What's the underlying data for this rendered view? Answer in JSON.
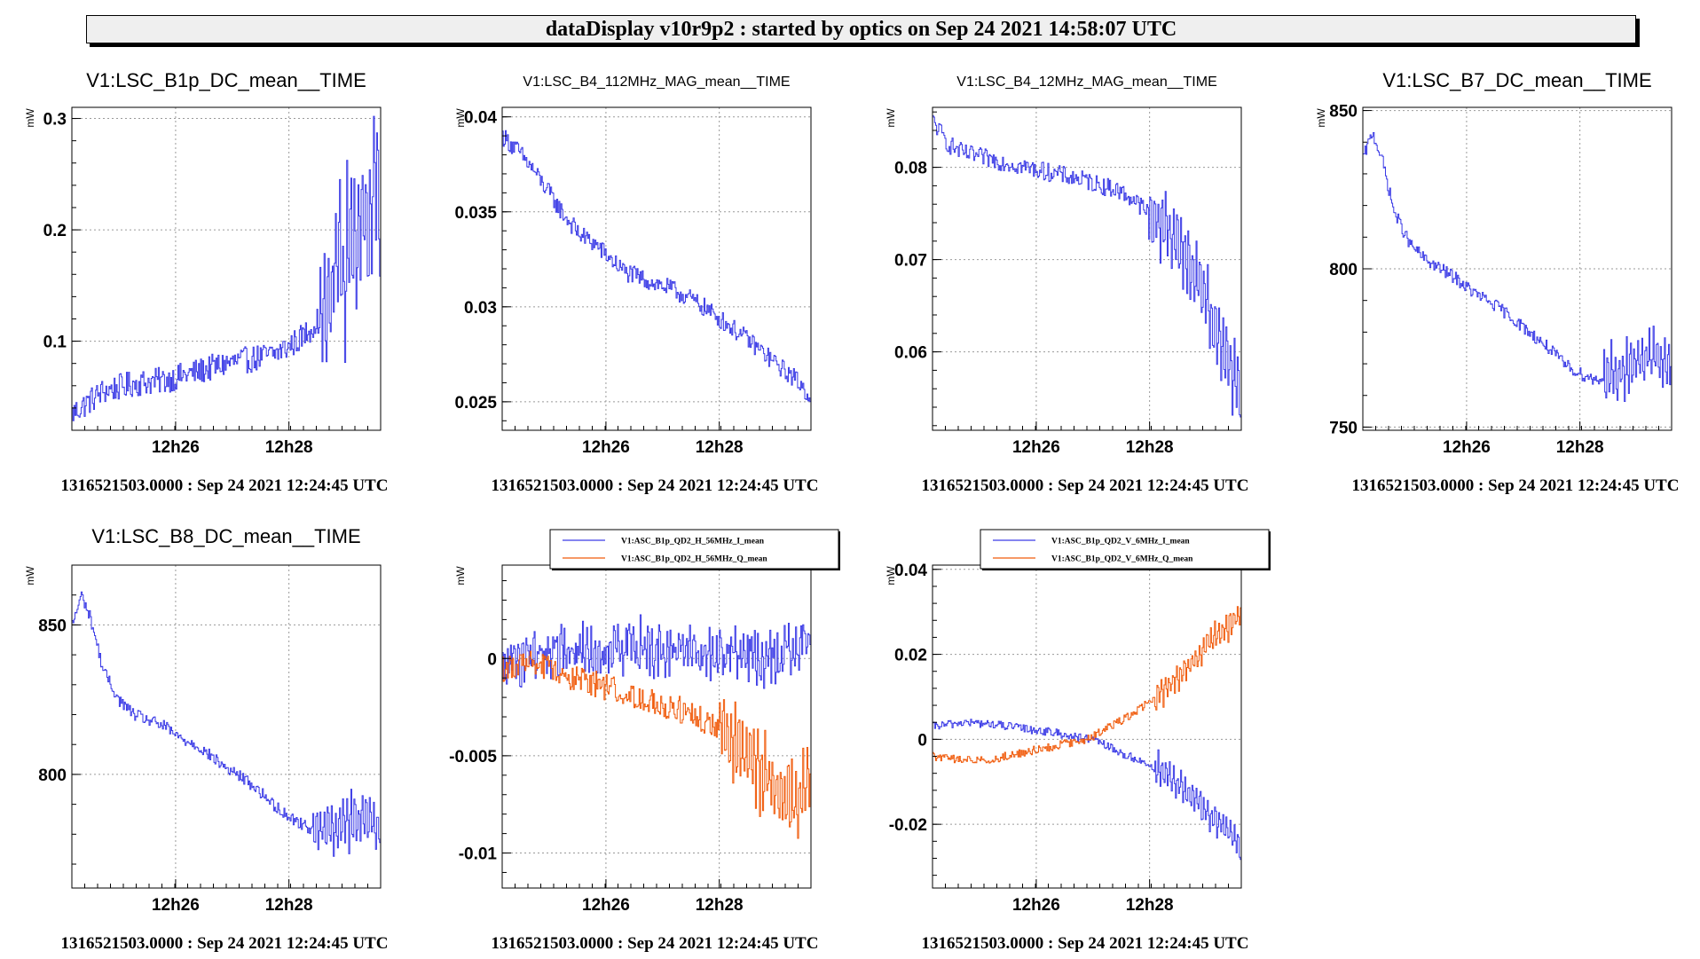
{
  "header": {
    "title": "dataDisplay v10r9p2 : started by optics on Sep 24 2021 14:58:07 UTC"
  },
  "colors": {
    "series_blue": "#3a3ae6",
    "series_orange": "#f05a0a",
    "grid": "#9a9a9a",
    "banner_bg": "#efefef"
  },
  "chart_data": [
    {
      "type": "line",
      "title": "V1:LSC_B1p_DC_mean__TIME",
      "ylabel": "mW",
      "yticks": [
        0.1,
        0.2,
        0.3
      ],
      "ytick_labels": [
        "0.1",
        "0.2",
        "0.3"
      ],
      "ylim": [
        0.02,
        0.31
      ],
      "xticks": [
        "12h26",
        "12h28"
      ],
      "xlabel": "1316521503.0000 : Sep 24 2021 12:24:45 UTC",
      "series": [
        {
          "color": "#3a3ae6",
          "anchors": [
            [
              0,
              0.035
            ],
            [
              0.05,
              0.045
            ],
            [
              0.1,
              0.055
            ],
            [
              0.2,
              0.062
            ],
            [
              0.3,
              0.065
            ],
            [
              0.4,
              0.072
            ],
            [
              0.5,
              0.08
            ],
            [
              0.6,
              0.085
            ],
            [
              0.65,
              0.088
            ],
            [
              0.7,
              0.095
            ],
            [
              0.75,
              0.105
            ],
            [
              0.8,
              0.12
            ],
            [
              0.84,
              0.14
            ],
            [
              0.86,
              0.18
            ],
            [
              0.88,
              0.15
            ],
            [
              0.9,
              0.2
            ],
            [
              0.92,
              0.18
            ],
            [
              0.94,
              0.23
            ],
            [
              0.96,
              0.2
            ],
            [
              0.98,
              0.26
            ],
            [
              1.0,
              0.2
            ]
          ],
          "noise": 0.012,
          "spike_from": 0.8,
          "spike_amp": 0.06
        }
      ]
    },
    {
      "type": "line",
      "title": "V1:LSC_B4_112MHz_MAG_mean__TIME",
      "ylabel": "mW",
      "yticks": [
        0.025,
        0.03,
        0.035,
        0.04
      ],
      "ytick_labels": [
        "0.025",
        "0.03",
        "0.035",
        "0.04"
      ],
      "ylim": [
        0.0235,
        0.0405
      ],
      "xticks": [
        "12h26",
        "12h28"
      ],
      "xlabel": "1316521503.0000 : Sep 24 2021 12:24:45 UTC",
      "series": [
        {
          "color": "#3a3ae6",
          "anchors": [
            [
              0,
              0.039
            ],
            [
              0.05,
              0.0382
            ],
            [
              0.1,
              0.0372
            ],
            [
              0.15,
              0.036
            ],
            [
              0.2,
              0.0348
            ],
            [
              0.25,
              0.0338
            ],
            [
              0.3,
              0.0333
            ],
            [
              0.35,
              0.0325
            ],
            [
              0.4,
              0.0318
            ],
            [
              0.45,
              0.0315
            ],
            [
              0.5,
              0.0312
            ],
            [
              0.55,
              0.0309
            ],
            [
              0.6,
              0.0305
            ],
            [
              0.65,
              0.03
            ],
            [
              0.7,
              0.0294
            ],
            [
              0.75,
              0.0288
            ],
            [
              0.8,
              0.0282
            ],
            [
              0.85,
              0.0275
            ],
            [
              0.9,
              0.0268
            ],
            [
              0.95,
              0.0262
            ],
            [
              1.0,
              0.0252
            ]
          ],
          "noise": 0.0005,
          "spike_from": 2,
          "spike_amp": 0
        }
      ]
    },
    {
      "type": "line",
      "title": "V1:LSC_B4_12MHz_MAG_mean__TIME",
      "ylabel": "mW",
      "yticks": [
        0.06,
        0.07,
        0.08
      ],
      "ytick_labels": [
        "0.06",
        "0.07",
        "0.08"
      ],
      "ylim": [
        0.0515,
        0.0865
      ],
      "xticks": [
        "12h26",
        "12h28"
      ],
      "xlabel": "1316521503.0000 : Sep 24 2021 12:24:45 UTC",
      "series": [
        {
          "color": "#3a3ae6",
          "anchors": [
            [
              0,
              0.085
            ],
            [
              0.05,
              0.0825
            ],
            [
              0.1,
              0.0815
            ],
            [
              0.2,
              0.0808
            ],
            [
              0.3,
              0.08
            ],
            [
              0.4,
              0.0793
            ],
            [
              0.5,
              0.0785
            ],
            [
              0.6,
              0.0775
            ],
            [
              0.65,
              0.0765
            ],
            [
              0.7,
              0.075
            ],
            [
              0.75,
              0.0735
            ],
            [
              0.8,
              0.072
            ],
            [
              0.84,
              0.069
            ],
            [
              0.88,
              0.066
            ],
            [
              0.92,
              0.062
            ],
            [
              0.96,
              0.059
            ],
            [
              1.0,
              0.055
            ]
          ],
          "noise": 0.001,
          "spike_from": 0.7,
          "spike_amp": 0.0035
        }
      ]
    },
    {
      "type": "line",
      "title": "V1:LSC_B7_DC_mean__TIME",
      "ylabel": "mW",
      "yticks": [
        750,
        800,
        850
      ],
      "ytick_labels": [
        "750",
        "800",
        "850"
      ],
      "ylim": [
        749,
        851
      ],
      "xticks": [
        "12h26",
        "12h28"
      ],
      "xlabel": "1316521503.0000 : Sep 24 2021 12:24:45 UTC",
      "series": [
        {
          "color": "#3a3ae6",
          "anchors": [
            [
              0,
              835
            ],
            [
              0.03,
              843
            ],
            [
              0.06,
              835
            ],
            [
              0.1,
              818
            ],
            [
              0.15,
              808
            ],
            [
              0.2,
              803
            ],
            [
              0.25,
              800
            ],
            [
              0.3,
              797
            ],
            [
              0.35,
              793
            ],
            [
              0.4,
              790
            ],
            [
              0.45,
              787
            ],
            [
              0.5,
              783
            ],
            [
              0.55,
              779
            ],
            [
              0.6,
              775
            ],
            [
              0.65,
              770
            ],
            [
              0.7,
              767
            ],
            [
              0.75,
              765
            ],
            [
              0.8,
              766
            ],
            [
              0.85,
              768
            ],
            [
              0.9,
              771
            ],
            [
              0.95,
              772
            ],
            [
              1.0,
              770
            ]
          ],
          "noise": 2.0,
          "spike_from": 0.78,
          "spike_amp": 8
        }
      ]
    },
    {
      "type": "line",
      "title": "V1:LSC_B8_DC_mean__TIME",
      "ylabel": "mW",
      "yticks": [
        800,
        850
      ],
      "ytick_labels": [
        "800",
        "850"
      ],
      "ylim": [
        762,
        870
      ],
      "xticks": [
        "12h26",
        "12h28"
      ],
      "xlabel": "1316521503.0000 : Sep 24 2021 12:24:45 UTC",
      "series": [
        {
          "color": "#3a3ae6",
          "anchors": [
            [
              0,
              850
            ],
            [
              0.03,
              860
            ],
            [
              0.06,
              852
            ],
            [
              0.1,
              835
            ],
            [
              0.15,
              825
            ],
            [
              0.2,
              820
            ],
            [
              0.25,
              818
            ],
            [
              0.3,
              816
            ],
            [
              0.35,
              812
            ],
            [
              0.4,
              810
            ],
            [
              0.45,
              806
            ],
            [
              0.5,
              802
            ],
            [
              0.55,
              799
            ],
            [
              0.6,
              795
            ],
            [
              0.65,
              790
            ],
            [
              0.7,
              786
            ],
            [
              0.75,
              783
            ],
            [
              0.8,
              781
            ],
            [
              0.85,
              782
            ],
            [
              0.9,
              785
            ],
            [
              0.95,
              786
            ],
            [
              1.0,
              782
            ]
          ],
          "noise": 2.0,
          "spike_from": 0.78,
          "spike_amp": 8
        }
      ]
    },
    {
      "type": "line",
      "title": "",
      "ylabel": "mW",
      "yticks": [
        -0.01,
        -0.005,
        0
      ],
      "ytick_labels": [
        "-0.01",
        "-0.005",
        "0"
      ],
      "ylim": [
        -0.0118,
        0.0048
      ],
      "xticks": [
        "12h26",
        "12h28"
      ],
      "xlabel": "1316521503.0000 : Sep 24 2021 12:24:45 UTC",
      "legend": [
        "V1:ASC_B1p_QD2_H_56MHz_I_mean",
        "V1:ASC_B1p_QD2_H_56MHz_Q_mean"
      ],
      "series": [
        {
          "name": "V1:ASC_B1p_QD2_H_56MHz_I_mean",
          "color": "#3a3ae6",
          "anchors": [
            [
              0,
              -0.0005
            ],
            [
              0.1,
              0.0003
            ],
            [
              0.2,
              0.0006
            ],
            [
              0.3,
              0.0005
            ],
            [
              0.4,
              0.0006
            ],
            [
              0.5,
              0.0004
            ],
            [
              0.6,
              0.0005
            ],
            [
              0.7,
              0.0003
            ],
            [
              0.8,
              0.0002
            ],
            [
              0.9,
              0.0
            ],
            [
              1.0,
              0.001
            ]
          ],
          "noise": 0.001,
          "spike_from": 0.05,
          "spike_amp": 0.0008
        },
        {
          "name": "V1:ASC_B1p_QD2_H_56MHz_Q_mean",
          "color": "#f05a0a",
          "anchors": [
            [
              0,
              -0.0005
            ],
            [
              0.1,
              -0.0003
            ],
            [
              0.2,
              -0.0008
            ],
            [
              0.3,
              -0.0013
            ],
            [
              0.4,
              -0.0018
            ],
            [
              0.5,
              -0.0022
            ],
            [
              0.6,
              -0.0028
            ],
            [
              0.7,
              -0.0035
            ],
            [
              0.75,
              -0.0045
            ],
            [
              0.8,
              -0.005
            ],
            [
              0.85,
              -0.006
            ],
            [
              0.9,
              -0.007
            ],
            [
              0.95,
              -0.0075
            ],
            [
              1.0,
              -0.0055
            ]
          ],
          "noise": 0.0007,
          "spike_from": 0.7,
          "spike_amp": 0.0018
        }
      ]
    },
    {
      "type": "line",
      "title": "",
      "ylabel": "mW",
      "yticks": [
        -0.02,
        0,
        0.02,
        0.04
      ],
      "ytick_labels": [
        "-0.02",
        "0",
        "0.02",
        "0.04"
      ],
      "ylim": [
        -0.035,
        0.041
      ],
      "xticks": [
        "12h26",
        "12h28"
      ],
      "xlabel": "1316521503.0000 : Sep 24 2021 12:24:45 UTC",
      "legend": [
        "V1:ASC_B1p_QD2_V_6MHz_I_mean",
        "V1:ASC_B1p_QD2_V_6MHz_Q_mean"
      ],
      "series": [
        {
          "name": "V1:ASC_B1p_QD2_V_6MHz_I_mean",
          "color": "#3a3ae6",
          "anchors": [
            [
              0,
              0.003
            ],
            [
              0.1,
              0.004
            ],
            [
              0.2,
              0.0035
            ],
            [
              0.3,
              0.0025
            ],
            [
              0.4,
              0.0015
            ],
            [
              0.5,
              0.0
            ],
            [
              0.55,
              -0.001
            ],
            [
              0.6,
              -0.003
            ],
            [
              0.65,
              -0.0045
            ],
            [
              0.7,
              -0.006
            ],
            [
              0.75,
              -0.008
            ],
            [
              0.8,
              -0.011
            ],
            [
              0.85,
              -0.014
            ],
            [
              0.9,
              -0.018
            ],
            [
              0.95,
              -0.021
            ],
            [
              1.0,
              -0.026
            ]
          ],
          "noise": 0.001,
          "spike_from": 0.72,
          "spike_amp": 0.003
        },
        {
          "name": "V1:ASC_B1p_QD2_V_6MHz_Q_mean",
          "color": "#f05a0a",
          "anchors": [
            [
              0,
              -0.004
            ],
            [
              0.1,
              -0.005
            ],
            [
              0.2,
              -0.0045
            ],
            [
              0.3,
              -0.003
            ],
            [
              0.4,
              -0.0015
            ],
            [
              0.5,
              0.0
            ],
            [
              0.55,
              0.002
            ],
            [
              0.6,
              0.004
            ],
            [
              0.65,
              0.006
            ],
            [
              0.7,
              0.009
            ],
            [
              0.75,
              0.012
            ],
            [
              0.8,
              0.015
            ],
            [
              0.85,
              0.019
            ],
            [
              0.9,
              0.023
            ],
            [
              0.95,
              0.026
            ],
            [
              1.0,
              0.03
            ]
          ],
          "noise": 0.001,
          "spike_from": 0.72,
          "spike_amp": 0.003
        }
      ]
    }
  ]
}
